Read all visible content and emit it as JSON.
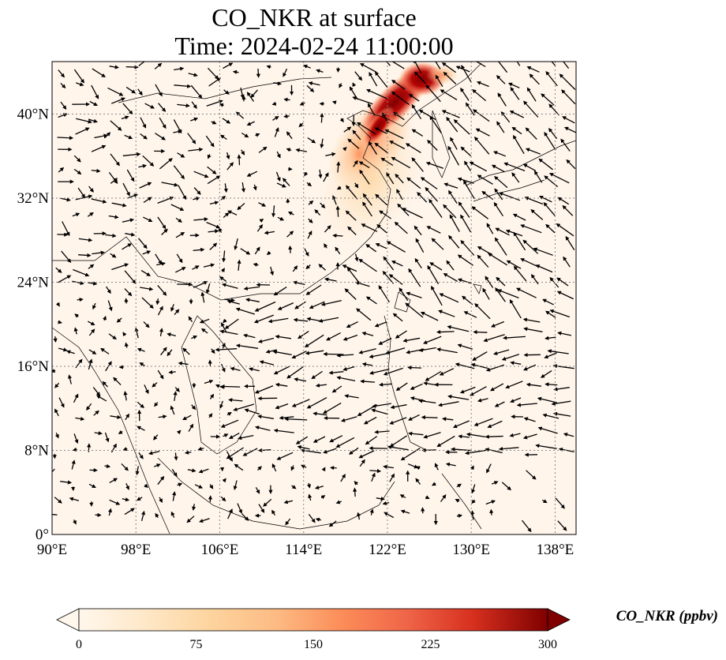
{
  "title_line1": "CO_NKR at surface",
  "title_line2": "Time: 2024-02-24 11:00:00",
  "map": {
    "lon_range": [
      90,
      140
    ],
    "lat_range": [
      0,
      45
    ],
    "lon_ticks": [
      {
        "value": 90,
        "label": "90°E"
      },
      {
        "value": 98,
        "label": "98°E"
      },
      {
        "value": 106,
        "label": "106°E"
      },
      {
        "value": 114,
        "label": "114°E"
      },
      {
        "value": 122,
        "label": "122°E"
      },
      {
        "value": 130,
        "label": "130°E"
      },
      {
        "value": 138,
        "label": "138°E"
      }
    ],
    "lat_ticks": [
      {
        "value": 0,
        "label": "0°"
      },
      {
        "value": 8,
        "label": "8°N"
      },
      {
        "value": 16,
        "label": "16°N"
      },
      {
        "value": 24,
        "label": "24°N"
      },
      {
        "value": 32,
        "label": "32°N"
      },
      {
        "value": 40,
        "label": "40°N"
      }
    ],
    "gridlines": true,
    "background_color": "#fff5eb",
    "wind_vectors": "quiver arrows showing surface wind",
    "high_concentration_region": "northeast China / Bohai coast, around 118-128°E, 35-45°N"
  },
  "colorbar": {
    "label": "CO_NKR (ppbv)",
    "min": 0,
    "max": 300,
    "ticks": [
      "0",
      "75",
      "150",
      "225",
      "300"
    ],
    "colormap": "OrRd",
    "colors": [
      "#fff5eb",
      "#fdd49e",
      "#fdbb84",
      "#fc8d59",
      "#ef6548",
      "#d7301f",
      "#b30000",
      "#7f0000"
    ]
  }
}
